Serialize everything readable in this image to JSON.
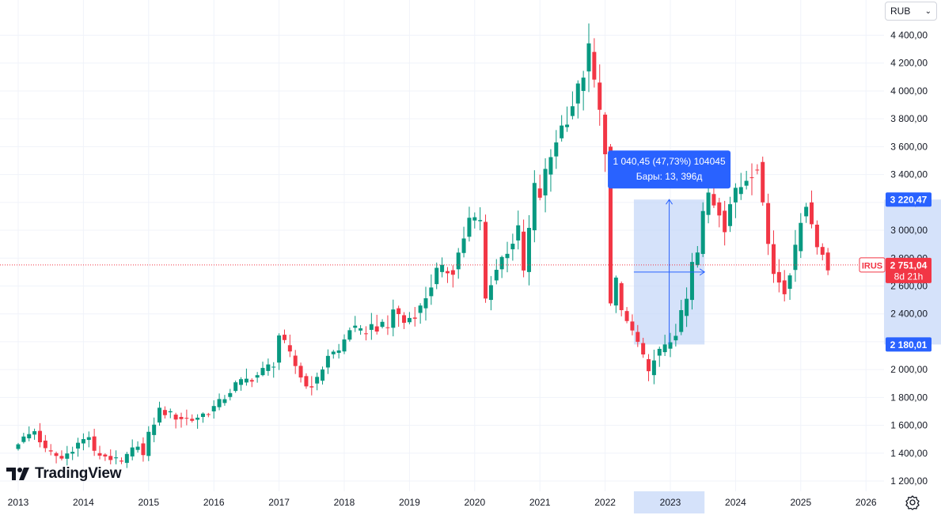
{
  "currency": {
    "label": "RUB"
  },
  "branding": {
    "logo_text": "TradingView"
  },
  "measure": {
    "line1": "1 040,45 (47,73%) 104045",
    "line2": "Бары: 13, 396д",
    "top_price": "3 220,47",
    "bottom_price": "2 180,01",
    "highlight_year": "2023"
  },
  "last_price": {
    "symbol": "IRUS",
    "value": "2 751,04",
    "countdown": "8d 21h",
    "price": 2751.04
  },
  "colors": {
    "up": "#089981",
    "down": "#f23645",
    "measure_fill": "#bfd3f8",
    "measure_label": "#2962ff",
    "axis_text": "#131722",
    "grid": "#f0f3fa"
  },
  "chart_data": {
    "type": "candlestick",
    "interval": "1M",
    "symbol": "IRUS",
    "currency": "RUB",
    "ylim": [
      1150,
      4520
    ],
    "y_ticks": [
      1200,
      1400,
      1600,
      1800,
      2000,
      2200,
      2400,
      2600,
      2800,
      3000,
      3200,
      3400,
      3600,
      3800,
      4000,
      4200,
      4400
    ],
    "y_tick_labels": [
      "1 200,00",
      "1 400,00",
      "1 600,00",
      "1 800,00",
      "2 000,00",
      "2 200,00",
      "2 400,00",
      "2 600,00",
      "2 800,00",
      "3 000,00",
      "3 200,00",
      "3 400,00",
      "3 600,00",
      "3 800,00",
      "4 000,00",
      "4 200,00",
      "4 400,00"
    ],
    "x_ticks": [
      "2013",
      "2014",
      "2015",
      "2016",
      "2017",
      "2018",
      "2019",
      "2020",
      "2021",
      "2022",
      "2023",
      "2024",
      "2025",
      "2026"
    ],
    "anchors": [
      [
        "2012-12",
        1430
      ],
      [
        "2013-01",
        1480
      ],
      [
        "2013-04",
        1560
      ],
      [
        "2013-06",
        1420
      ],
      [
        "2013-09",
        1360
      ],
      [
        "2013-12",
        1470
      ],
      [
        "2014-02",
        1520
      ],
      [
        "2014-03",
        1400
      ],
      [
        "2014-05",
        1380
      ],
      [
        "2014-08",
        1330
      ],
      [
        "2014-11",
        1470
      ],
      [
        "2014-12",
        1380
      ],
      [
        "2015-01",
        1530
      ],
      [
        "2015-03",
        1710
      ],
      [
        "2015-06",
        1660
      ],
      [
        "2015-09",
        1640
      ],
      [
        "2015-12",
        1700
      ],
      [
        "2016-02",
        1760
      ],
      [
        "2016-05",
        1890
      ],
      [
        "2016-09",
        1960
      ],
      [
        "2016-12",
        2050
      ],
      [
        "2017-01",
        2250
      ],
      [
        "2017-03",
        2100
      ],
      [
        "2017-06",
        1880
      ],
      [
        "2017-08",
        1920
      ],
      [
        "2017-10",
        2110
      ],
      [
        "2017-12",
        2130
      ],
      [
        "2018-02",
        2300
      ],
      [
        "2018-04",
        2260
      ],
      [
        "2018-06",
        2310
      ],
      [
        "2018-09",
        2300
      ],
      [
        "2018-10",
        2440
      ],
      [
        "2018-12",
        2340
      ],
      [
        "2019-03",
        2440
      ],
      [
        "2019-06",
        2700
      ],
      [
        "2019-09",
        2720
      ],
      [
        "2019-12",
        3070
      ],
      [
        "2020-02",
        3060
      ],
      [
        "2020-03",
        2500
      ],
      [
        "2020-04",
        2640
      ],
      [
        "2020-06",
        2800
      ],
      [
        "2020-09",
        2990
      ],
      [
        "2020-10",
        2700
      ],
      [
        "2020-12",
        3300
      ],
      [
        "2021-01",
        3250
      ],
      [
        "2021-02",
        3400
      ],
      [
        "2021-04",
        3660
      ],
      [
        "2021-06",
        3820
      ],
      [
        "2021-08",
        4000
      ],
      [
        "2021-10",
        4280
      ],
      [
        "2021-11",
        4060
      ],
      [
        "2022-01",
        3600
      ],
      [
        "2022-02",
        2460
      ],
      [
        "2022-03",
        2620
      ],
      [
        "2022-04",
        2420
      ],
      [
        "2022-06",
        2270
      ],
      [
        "2022-07",
        2190
      ],
      [
        "2022-09",
        1960
      ],
      [
        "2022-10",
        2100
      ],
      [
        "2022-12",
        2150
      ],
      [
        "2023-02",
        2270
      ],
      [
        "2023-04",
        2500
      ],
      [
        "2023-05",
        2750
      ],
      [
        "2023-06",
        2830
      ],
      [
        "2023-07",
        3110
      ],
      [
        "2023-08",
        3260
      ],
      [
        "2023-10",
        3140
      ],
      [
        "2023-11",
        3030
      ],
      [
        "2023-12",
        3200
      ],
      [
        "2024-03",
        3380
      ],
      [
        "2024-05",
        3490
      ],
      [
        "2024-07",
        2900
      ],
      [
        "2024-08",
        2700
      ],
      [
        "2024-10",
        2580
      ],
      [
        "2024-12",
        2850
      ],
      [
        "2025-01",
        3100
      ],
      [
        "2025-02",
        3200
      ],
      [
        "2025-04",
        2880
      ],
      [
        "2025-05",
        2840
      ],
      [
        "2025-06",
        2751
      ]
    ],
    "last_price": 2751.04
  }
}
